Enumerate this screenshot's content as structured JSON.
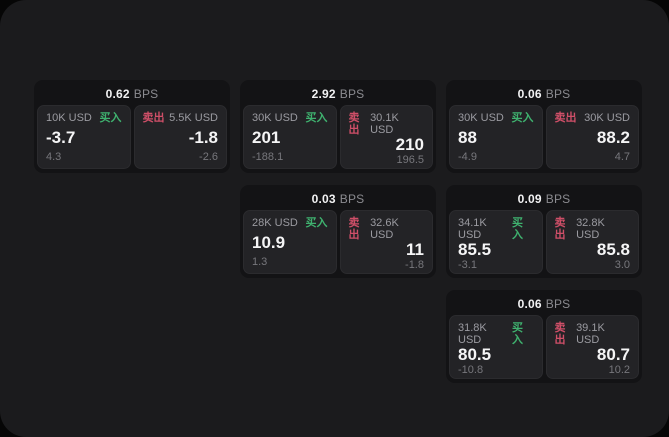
{
  "window": {
    "background": "#1b1b1d",
    "outside_background": "#060606"
  },
  "labels": {
    "bps": "BPS",
    "buy": "买入",
    "sell": "卖出"
  },
  "colors": {
    "buy_green": "#3fb26f",
    "sell_red": "#cf4f68",
    "value_white": "#f5f5f6"
  },
  "cards": [
    {
      "bps": "0.62",
      "buy": {
        "amount": "10K USD",
        "value": "-3.7",
        "sub": "4.3"
      },
      "sell": {
        "amount": "5.5K USD",
        "value": "-1.8",
        "sub": "-2.6"
      }
    },
    {
      "bps": "2.92",
      "buy": {
        "amount": "30K USD",
        "value": "201",
        "sub": "-188.1"
      },
      "sell": {
        "amount": "30.1K USD",
        "value": "210",
        "sub": "196.5"
      }
    },
    {
      "bps": "0.06",
      "buy": {
        "amount": "30K USD",
        "value": "88",
        "sub": "-4.9"
      },
      "sell": {
        "amount": "30K USD",
        "value": "88.2",
        "sub": "4.7"
      }
    },
    {
      "bps": "0.03",
      "buy": {
        "amount": "28K USD",
        "value": "10.9",
        "sub": "1.3"
      },
      "sell": {
        "amount": "32.6K USD",
        "value": "11",
        "sub": "-1.8"
      }
    },
    {
      "bps": "0.09",
      "buy": {
        "amount": "34.1K USD",
        "value": "85.5",
        "sub": "-3.1"
      },
      "sell": {
        "amount": "32.8K USD",
        "value": "85.8",
        "sub": "3.0"
      }
    },
    {
      "bps": "0.06",
      "buy": {
        "amount": "31.8K USD",
        "value": "80.5",
        "sub": "-10.8"
      },
      "sell": {
        "amount": "39.1K USD",
        "value": "80.7",
        "sub": "10.2"
      }
    }
  ]
}
